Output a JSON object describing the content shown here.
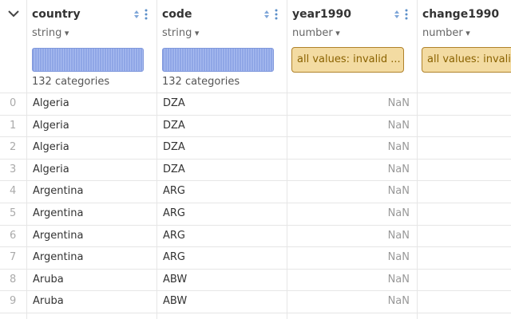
{
  "columns": [
    {
      "name": "country",
      "type": "string",
      "summary": "132 categories"
    },
    {
      "name": "code",
      "type": "string",
      "summary": "132 categories"
    },
    {
      "name": "year1990",
      "type": "number",
      "invalid": "all values: invalid ..."
    },
    {
      "name": "change1990",
      "type": "number",
      "invalid": "all values: invalid"
    }
  ],
  "rows": [
    [
      0,
      "Algeria",
      "DZA",
      "NaN"
    ],
    [
      1,
      "Algeria",
      "DZA",
      "NaN"
    ],
    [
      2,
      "Algeria",
      "DZA",
      "NaN"
    ],
    [
      3,
      "Algeria",
      "DZA",
      "NaN"
    ],
    [
      4,
      "Argentina",
      "ARG",
      "NaN"
    ],
    [
      5,
      "Argentina",
      "ARG",
      "NaN"
    ],
    [
      6,
      "Argentina",
      "ARG",
      "NaN"
    ],
    [
      7,
      "Argentina",
      "ARG",
      "NaN"
    ],
    [
      8,
      "Aruba",
      "ABW",
      "NaN"
    ],
    [
      9,
      "Aruba",
      "ABW",
      "NaN"
    ]
  ]
}
